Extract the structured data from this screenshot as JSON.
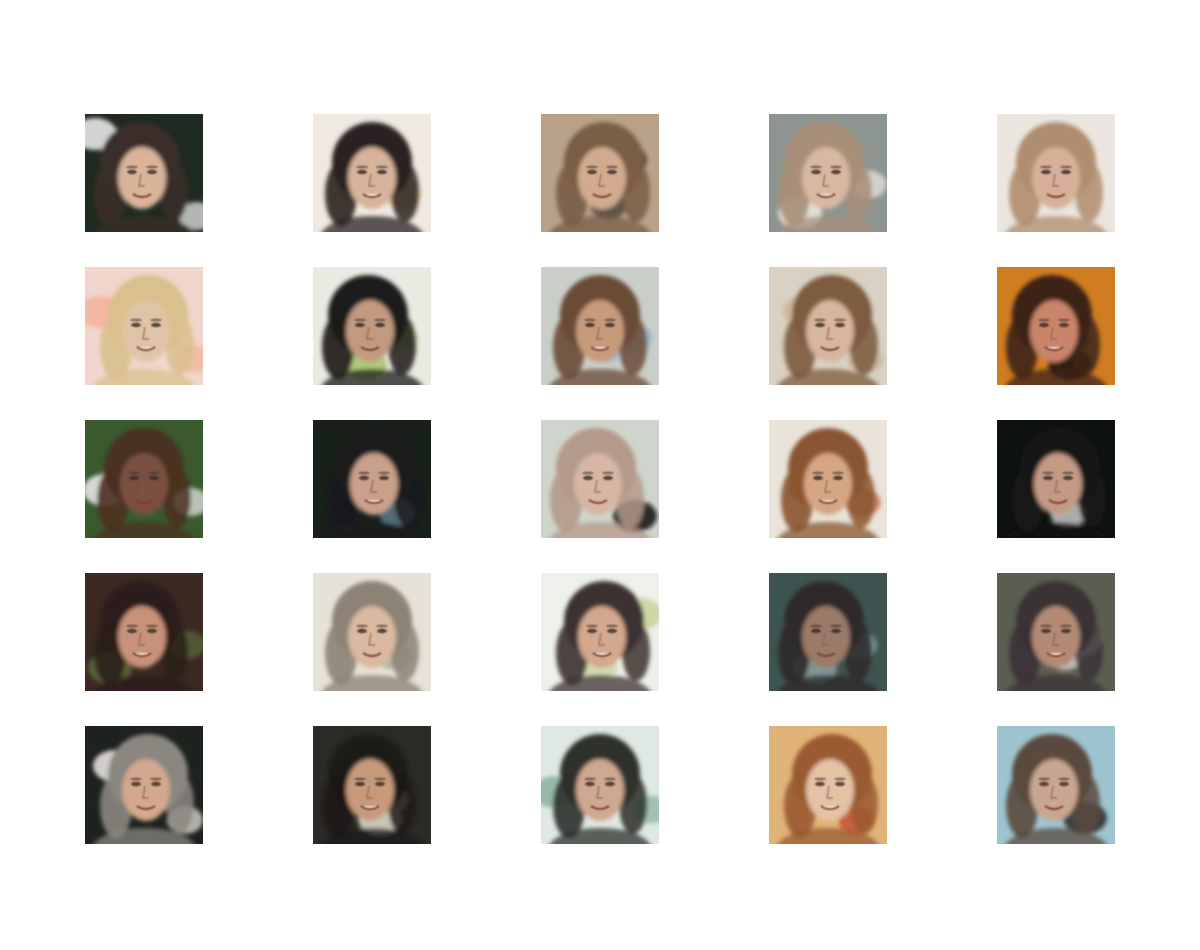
{
  "figure": {
    "rows": 5,
    "cols": 5,
    "tiles": [
      {
        "bg": "#1f2a20",
        "skin": "#d9b49a",
        "hair": "#3a2e2a",
        "accent": "#f2f2f2"
      },
      {
        "bg": "#efe9e2",
        "skin": "#d6b39a",
        "hair": "#2a2420",
        "accent": "#d9a86a"
      },
      {
        "bg": "#b8a28a",
        "skin": "#d2ab8e",
        "hair": "#7a5d45",
        "accent": "#3a3330"
      },
      {
        "bg": "#8c9590",
        "skin": "#d8b8a0",
        "hair": "#a88f78",
        "accent": "#eeeae2"
      },
      {
        "bg": "#eae6df",
        "skin": "#d8b09a",
        "hair": "#b08d6e",
        "accent": "#e6dfd4"
      },
      {
        "bg": "#f0d6cc",
        "skin": "#e0c4a8",
        "hair": "#d9c08c",
        "accent": "#f4b19a"
      },
      {
        "bg": "#e8ebe2",
        "skin": "#c29a80",
        "hair": "#1e1b1a",
        "accent": "#a5c46a"
      },
      {
        "bg": "#c9cfc8",
        "skin": "#c79a7c",
        "hair": "#6b4b36",
        "accent": "#8fb1c8"
      },
      {
        "bg": "#d8d1c4",
        "skin": "#d6b69c",
        "hair": "#7d5b3f",
        "accent": "#cbb49a"
      },
      {
        "bg": "#d07d22",
        "skin": "#c9846b",
        "hair": "#3d2317",
        "accent": "#101010"
      },
      {
        "bg": "#3a5a2e",
        "skin": "#7a5040",
        "hair": "#4a3020",
        "accent": "#f0eef0"
      },
      {
        "bg": "#18201a",
        "skin": "#c9a08a",
        "hair": "#1b1b1d",
        "accent": "#6e8a9c"
      },
      {
        "bg": "#cfd5cc",
        "skin": "#d7b6a4",
        "hair": "#b49a8a",
        "accent": "#0e0e0e"
      },
      {
        "bg": "#e9e3da",
        "skin": "#d5a684",
        "hair": "#8a5530",
        "accent": "#c25a30"
      },
      {
        "bg": "#0e120e",
        "skin": "#c39a84",
        "hair": "#141414",
        "accent": "#eceef0"
      },
      {
        "bg": "#3c2a22",
        "skin": "#c8927a",
        "hair": "#2a1e1a",
        "accent": "#5a6a3a"
      },
      {
        "bg": "#e6e2d8",
        "skin": "#d9b9a0",
        "hair": "#8c8276",
        "accent": "#9aaa8a"
      },
      {
        "bg": "#eef0ea",
        "skin": "#d3a88e",
        "hair": "#3c3230",
        "accent": "#c9d19a"
      },
      {
        "bg": "#3e5450",
        "skin": "#9a7a68",
        "hair": "#2e2a2a",
        "accent": "#8aa2a4"
      },
      {
        "bg": "#5a5e50",
        "skin": "#b48a74",
        "hair": "#3a3236",
        "accent": "#e6e2de"
      },
      {
        "bg": "#1e221e",
        "skin": "#d2a88e",
        "hair": "#8a8680",
        "accent": "#f0ece6"
      },
      {
        "bg": "#2a2a26",
        "skin": "#c79a7c",
        "hair": "#1e1a18",
        "accent": "#e6e0d2"
      },
      {
        "bg": "#dfe8e2",
        "skin": "#cfa890",
        "hair": "#2e302c",
        "accent": "#8ab0a0"
      },
      {
        "bg": "#e0b478",
        "skin": "#e4c2a6",
        "hair": "#9a5a30",
        "accent": "#c23a2a"
      },
      {
        "bg": "#9ec4d0",
        "skin": "#c9a690",
        "hair": "#5a4a3e",
        "accent": "#2a2a26"
      }
    ]
  }
}
